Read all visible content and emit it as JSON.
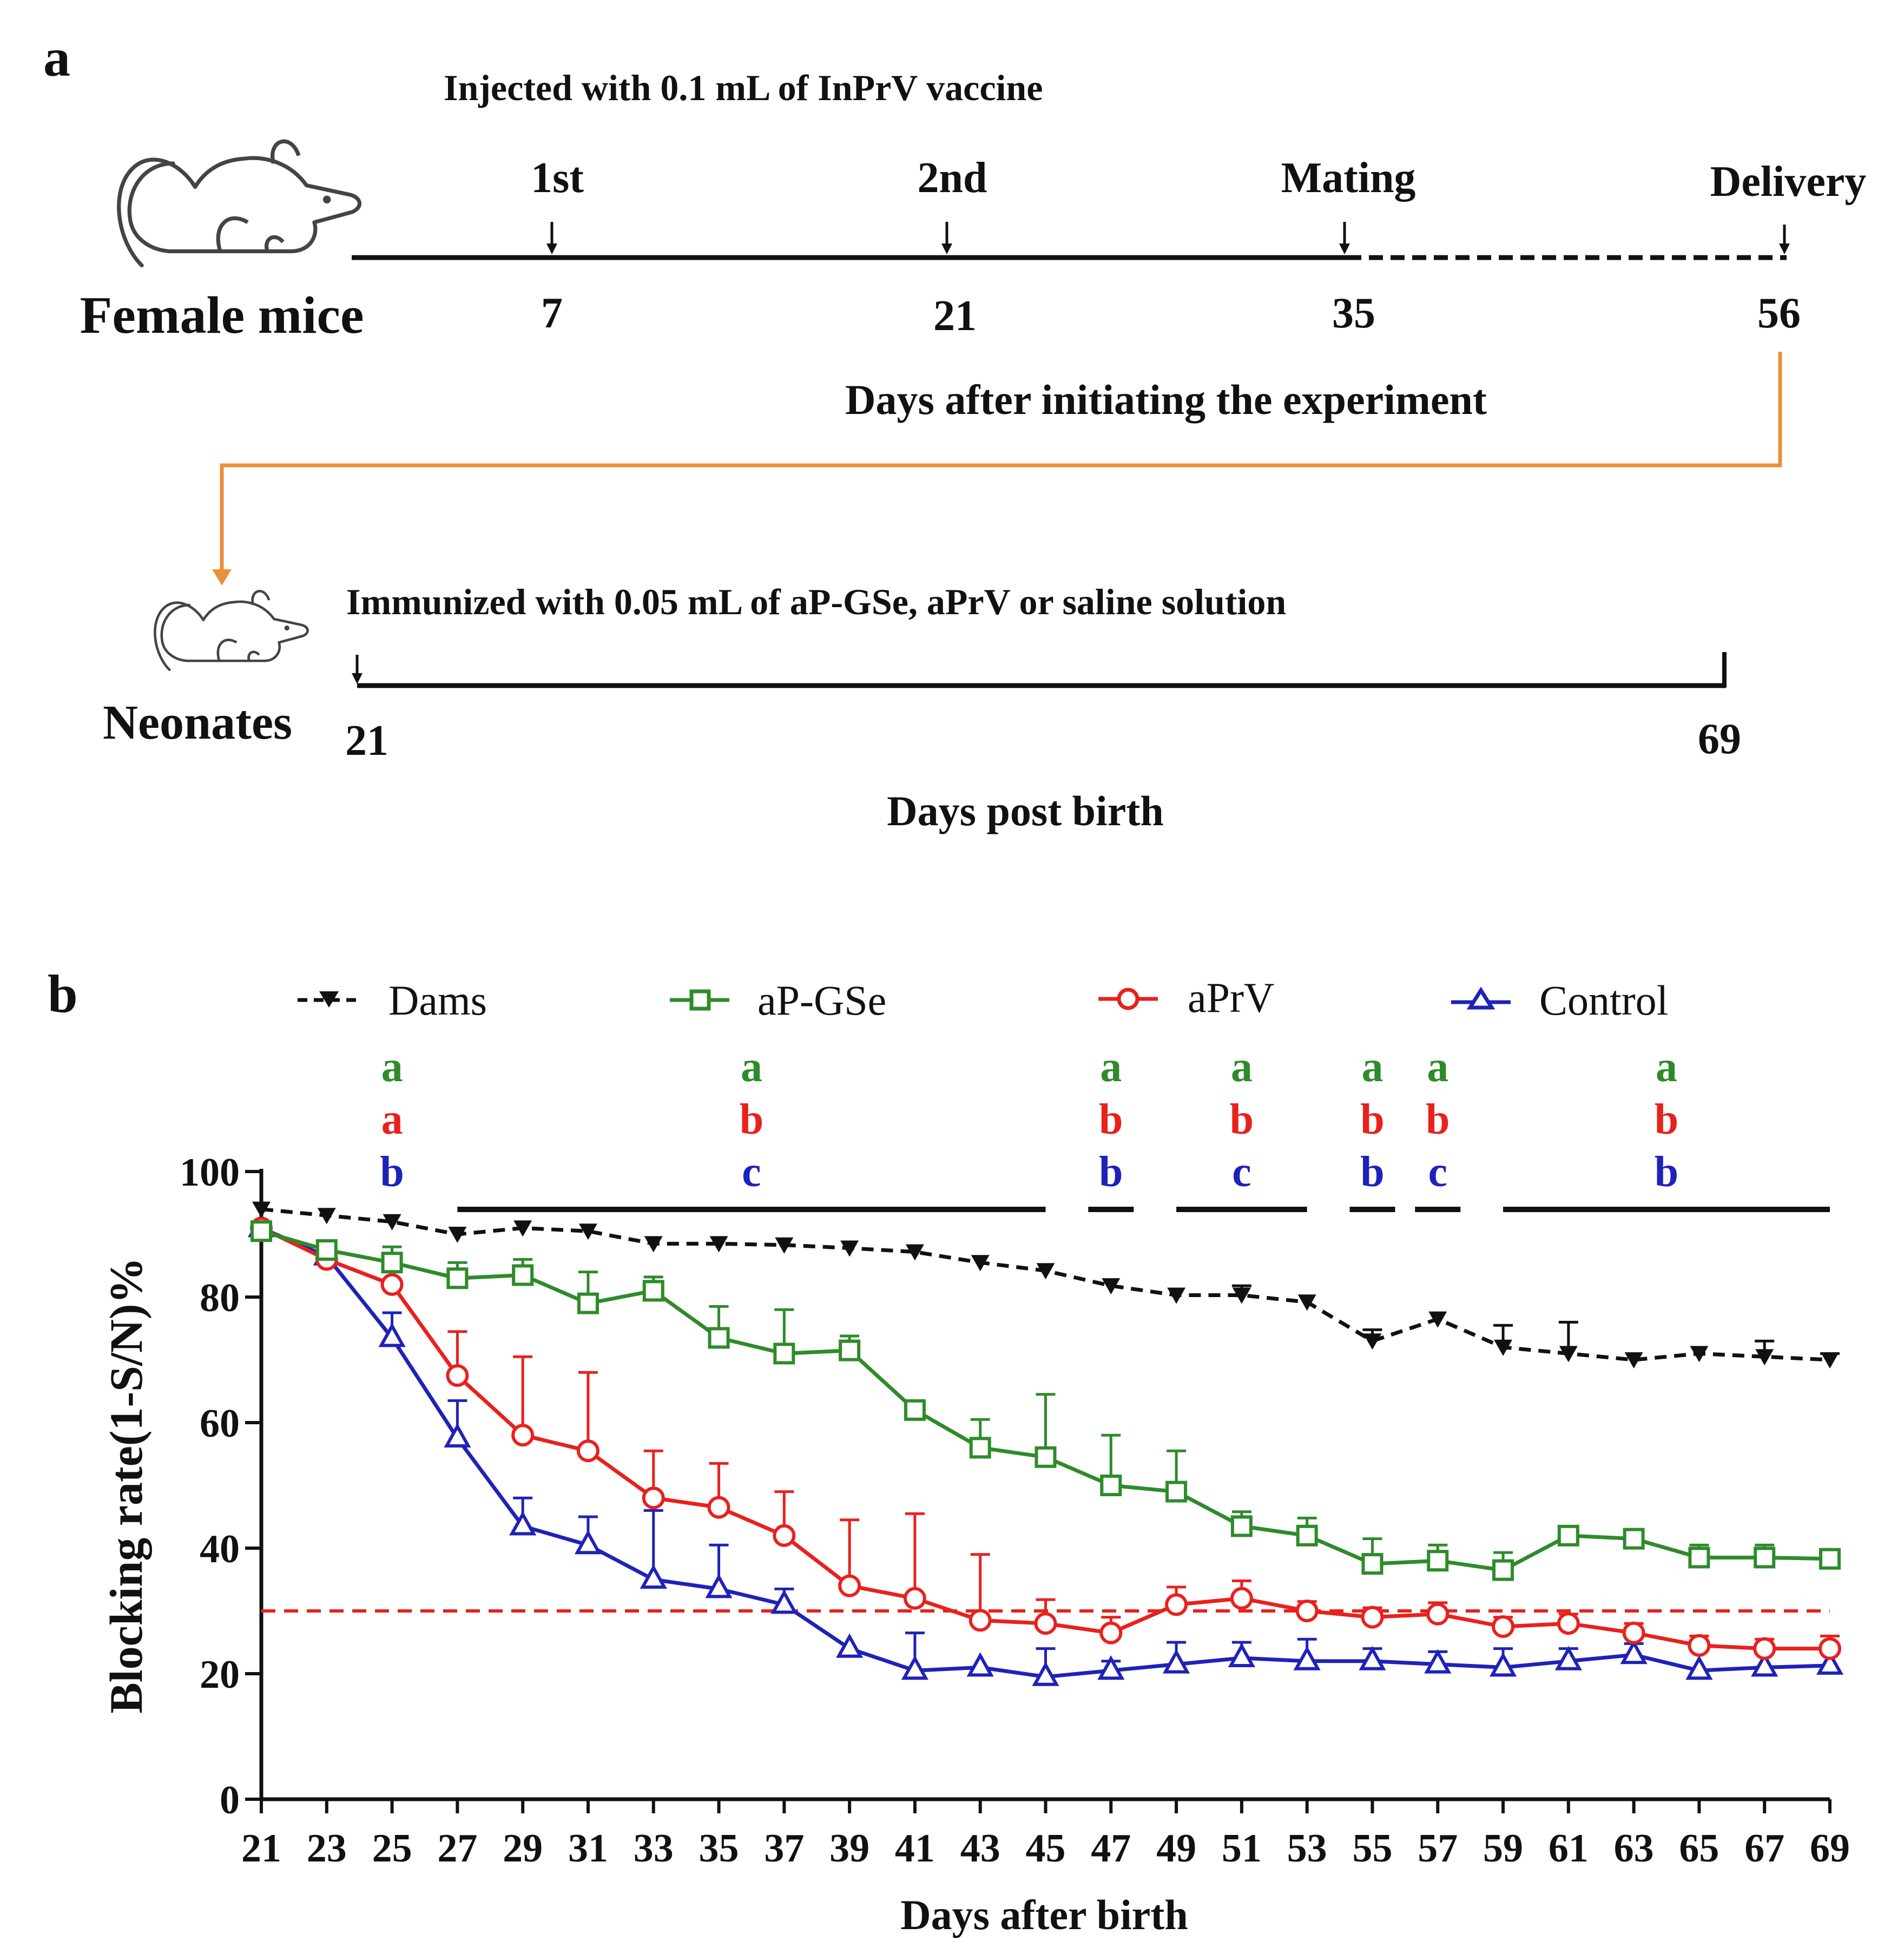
{
  "panel_a": {
    "label": "a",
    "injection_caption": "Injected with 0.1 mL of InPrV vaccine",
    "female_label": "Female mice",
    "events": [
      {
        "label": "1st",
        "day": "7"
      },
      {
        "label": "2nd",
        "day": "21"
      },
      {
        "label": "Mating",
        "day": "35"
      },
      {
        "label": "Delivery",
        "day": "56"
      }
    ],
    "axis_caption_top": "Days after initiating the experiment",
    "immunization_caption": "Immunized  with 0.05 mL of aP-GSe, aPrV or saline solution",
    "neonate_label": "Neonates",
    "neonate_start": "21",
    "neonate_end": "69",
    "axis_caption_bottom": "Days post birth",
    "colors": {
      "connector": "#e8913a",
      "line": "#111111"
    }
  },
  "chart_data": {
    "panel_label": "b",
    "type": "line",
    "xlabel": "Days after birth",
    "ylabel": "Blocking rate(1-S/N)%",
    "xlim": [
      21,
      69
    ],
    "ylim": [
      0,
      100
    ],
    "x": [
      21,
      23,
      25,
      27,
      29,
      31,
      33,
      35,
      37,
      39,
      41,
      43,
      45,
      47,
      49,
      51,
      53,
      55,
      57,
      59,
      61,
      63,
      65,
      67,
      69
    ],
    "x_ticks": [
      "21",
      "23",
      "25",
      "27",
      "29",
      "31",
      "33",
      "35",
      "37",
      "39",
      "41",
      "43",
      "45",
      "47",
      "49",
      "51",
      "53",
      "55",
      "57",
      "59",
      "61",
      "63",
      "65",
      "67",
      "69"
    ],
    "y_ticks": [
      "0",
      "20",
      "40",
      "60",
      "80",
      "100"
    ],
    "threshold": {
      "value": 30,
      "color": "#e8211d"
    },
    "series": [
      {
        "name": "Dams",
        "color": "#111111",
        "marker": "triangle-down",
        "dashed": true,
        "values": [
          94,
          93,
          92,
          90,
          91,
          90.5,
          88.5,
          88.5,
          88.3,
          87.8,
          87.2,
          85.5,
          84.2,
          81.8,
          80.3,
          80.3,
          79.2,
          73,
          76.5,
          72,
          71,
          70,
          71,
          70.5,
          70
        ],
        "errors": [
          0,
          0,
          0,
          0,
          0,
          0,
          0,
          0,
          0,
          0,
          0,
          0,
          0,
          0,
          0,
          1.5,
          0,
          1.8,
          0,
          3.5,
          5,
          0,
          0,
          2.5,
          1
        ]
      },
      {
        "name": "aP-GSe",
        "color": "#2e8b2a",
        "marker": "square",
        "dashed": false,
        "values": [
          90.5,
          87.5,
          85.5,
          83,
          83.5,
          79,
          81,
          73.5,
          71,
          71.5,
          62,
          56,
          54.5,
          50,
          49,
          43.5,
          42,
          37.5,
          38,
          36.5,
          42,
          41.5,
          38.5,
          38.5,
          38.3
        ],
        "errors": [
          0,
          1,
          2.5,
          2.5,
          2.5,
          5,
          2.2,
          5,
          7,
          2.3,
          0,
          4.5,
          10,
          8,
          6.5,
          2.3,
          2.8,
          4,
          2.5,
          2.8,
          1.2,
          0,
          2,
          2,
          1.5
        ]
      },
      {
        "name": "aPrV",
        "color": "#e8211d",
        "marker": "circle",
        "dashed": false,
        "values": [
          91,
          86,
          82,
          67.5,
          58,
          55.5,
          48,
          46.5,
          42,
          34,
          32,
          28.5,
          28,
          26.5,
          31,
          32,
          30,
          29,
          29.5,
          27.5,
          28,
          26.5,
          24.5,
          24,
          24
        ],
        "errors": [
          0,
          0,
          0,
          7,
          12.5,
          12.5,
          7.5,
          7,
          7,
          10.5,
          13.5,
          10.5,
          3.8,
          2.5,
          2.8,
          2.8,
          1.5,
          1.5,
          1.8,
          1.5,
          1.5,
          1.5,
          1.5,
          1.5,
          2
        ]
      },
      {
        "name": "Control",
        "color": "#1f22b8",
        "marker": "triangle-up",
        "dashed": false,
        "values": [
          91,
          86.5,
          73.5,
          57.5,
          43.5,
          40.5,
          35,
          33.5,
          31,
          24,
          20.5,
          21,
          19.5,
          20.5,
          21.5,
          22.5,
          22,
          22,
          21.5,
          21,
          22,
          23,
          20.5,
          21,
          21.3
        ],
        "errors": [
          0,
          0,
          4,
          6,
          4.5,
          4.5,
          11,
          7,
          2.5,
          0,
          6,
          0,
          4.5,
          1.5,
          3.5,
          2.5,
          3.5,
          2,
          2,
          3,
          2,
          1.8,
          0,
          0,
          0
        ]
      }
    ],
    "significance": [
      {
        "start": 25,
        "end": 25,
        "letters": [
          "a",
          "a",
          "b"
        ]
      },
      {
        "start": 27,
        "end": 45,
        "letters": [
          "a",
          "b",
          "c"
        ]
      },
      {
        "start": 47,
        "end": 47,
        "letters": [
          "a",
          "b",
          "b"
        ]
      },
      {
        "start": 49,
        "end": 53,
        "letters": [
          "a",
          "b",
          "c"
        ]
      },
      {
        "start": 55,
        "end": 55,
        "letters": [
          "a",
          "b",
          "b"
        ]
      },
      {
        "start": 57,
        "end": 57,
        "letters": [
          "a",
          "b",
          "c"
        ]
      },
      {
        "start": 59,
        "end": 69,
        "letters": [
          "a",
          "b",
          "b"
        ]
      }
    ],
    "significance_colors": [
      "#2e8b2a",
      "#e8211d",
      "#1f22b8"
    ]
  }
}
